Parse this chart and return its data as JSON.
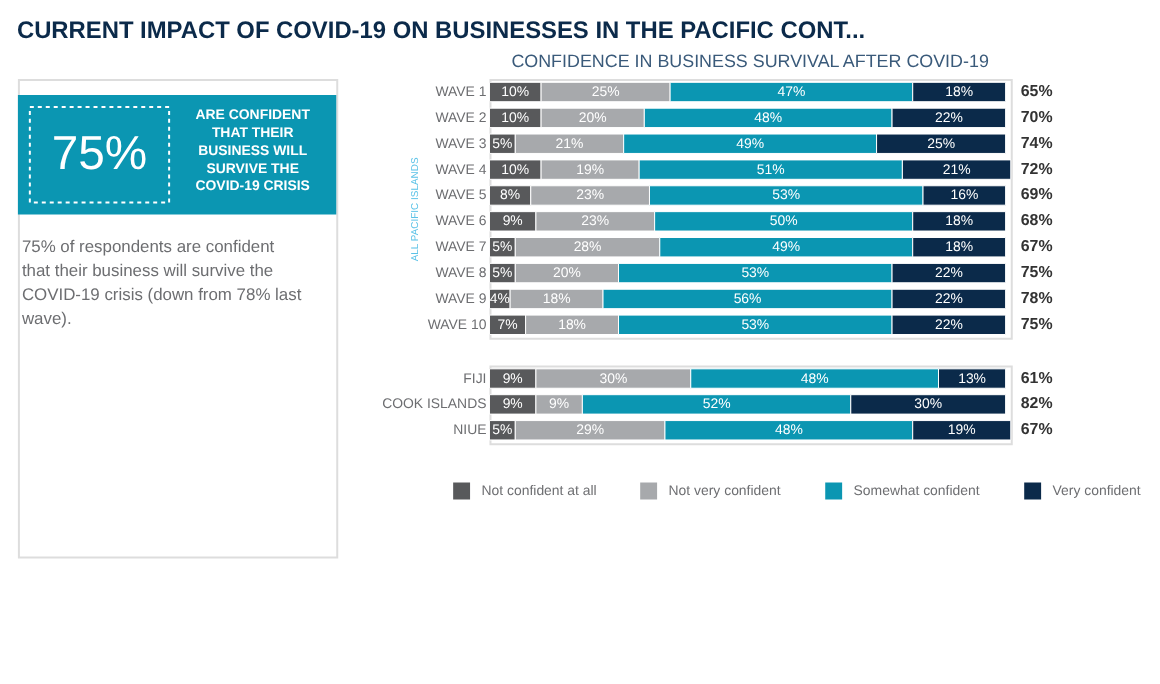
{
  "chart_data": [
    {
      "type": "other",
      "title": "CURRENT IMPACT OF COVID-19 ON BUSINESSES IN THE PACIFIC CONT...",
      "color": "#0b96b2",
      "annotations": [
        "75%",
        "ARE CONFIDENT THAT THEIR BUSINESS WILL SURVIVE THE COVID-19 CRISIS",
        "75% of respondents are confident that their business will survive the COVID-19 crisis (down from 78% last wave)."
      ]
    },
    {
      "type": "bar",
      "orientation": "horizontal",
      "stacked": true,
      "title": "CONFIDENCE IN BUSINESS SURVIVAL AFTER COVID-19",
      "ylabel": "ALL PACIFIC ISLANDS",
      "tick_labels": "y",
      "legend": "bottom",
      "categories": [
        "WAVE 1",
        "WAVE 2",
        "WAVE 3",
        "WAVE 4",
        "WAVE 5",
        "WAVE 6",
        "WAVE 7",
        "WAVE 8",
        "WAVE 9",
        "WAVE 10"
      ],
      "series": [
        {
          "name": "Not confident at all",
          "color": "#58595b",
          "values": [
            10,
            10,
            5,
            10,
            8,
            9,
            5,
            5,
            4,
            7
          ],
          "value_labels": [
            "10%",
            "10%",
            "5%",
            "10%",
            "8%",
            "9%",
            "5%",
            "5%",
            "4%",
            "7%"
          ]
        },
        {
          "name": "Not very confident",
          "color": "#a7a9ac",
          "values": [
            25,
            20,
            21,
            19,
            23,
            23,
            28,
            20,
            18,
            18
          ],
          "value_labels": [
            "25%",
            "20%",
            "21%",
            "19%",
            "23%",
            "23%",
            "28%",
            "20%",
            "18%",
            "18%"
          ]
        },
        {
          "name": "Somewhat confident",
          "color": "#0b96b2",
          "values": [
            47,
            48,
            49,
            51,
            53,
            50,
            49,
            53,
            56,
            53
          ],
          "value_labels": [
            "47%",
            "48%",
            "49%",
            "51%",
            "53%",
            "50%",
            "49%",
            "53%",
            "56%",
            "53%"
          ]
        },
        {
          "name": "Very confident",
          "color": "#0b2a4a",
          "values": [
            18,
            22,
            25,
            21,
            16,
            18,
            18,
            22,
            22,
            22
          ],
          "value_labels": [
            "18%",
            "22%",
            "25%",
            "21%",
            "16%",
            "18%",
            "18%",
            "22%",
            "22%",
            "22%"
          ]
        }
      ],
      "annotations": [
        "65%",
        "70%",
        "74%",
        "72%",
        "69%",
        "68%",
        "67%",
        "75%",
        "78%",
        "75%"
      ]
    },
    {
      "type": "bar",
      "orientation": "horizontal",
      "stacked": true,
      "tick_labels": "y",
      "categories": [
        "FIJI",
        "COOK ISLANDS",
        "NIUE"
      ],
      "series": [
        {
          "color": "#58595b",
          "values": [
            9,
            9,
            5
          ],
          "value_labels": [
            "9%",
            "9%",
            "5%"
          ]
        },
        {
          "color": "#a7a9ac",
          "values": [
            30,
            9,
            29
          ],
          "value_labels": [
            "30%",
            "9%",
            "29%"
          ]
        },
        {
          "color": "#0b96b2",
          "values": [
            48,
            52,
            48
          ],
          "value_labels": [
            "48%",
            "52%",
            "48%"
          ]
        },
        {
          "color": "#0b2a4a",
          "values": [
            13,
            30,
            19
          ],
          "value_labels": [
            "13%",
            "30%",
            "19%"
          ]
        }
      ],
      "annotations": [
        "61%",
        "82%",
        "67%"
      ]
    }
  ]
}
